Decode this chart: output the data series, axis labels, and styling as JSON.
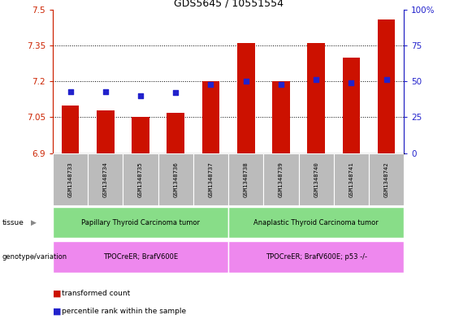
{
  "title": "GDS5645 / 10551554",
  "samples": [
    "GSM1348733",
    "GSM1348734",
    "GSM1348735",
    "GSM1348736",
    "GSM1348737",
    "GSM1348738",
    "GSM1348739",
    "GSM1348740",
    "GSM1348741",
    "GSM1348742"
  ],
  "transformed_count": [
    7.1,
    7.08,
    7.05,
    7.07,
    7.2,
    7.36,
    7.2,
    7.36,
    7.3,
    7.46
  ],
  "percentile_rank": [
    43,
    43,
    40,
    42,
    48,
    50,
    48,
    51,
    49,
    51
  ],
  "ylim_left": [
    6.9,
    7.5
  ],
  "ylim_right": [
    0,
    100
  ],
  "yticks_left": [
    6.9,
    7.05,
    7.2,
    7.35,
    7.5
  ],
  "yticks_right": [
    0,
    25,
    50,
    75,
    100
  ],
  "bar_color": "#cc1100",
  "dot_color": "#2222cc",
  "tissue_labels": [
    "Papillary Thyroid Carcinoma tumor",
    "Anaplastic Thyroid Carcinoma tumor"
  ],
  "tissue_color": "#88dd88",
  "genotype_labels": [
    "TPOCreER; BrafV600E",
    "TPOCreER; BrafV600E; p53 -/-"
  ],
  "genotype_color": "#ee88ee",
  "tissue_split": 5,
  "left_axis_color": "#cc2200",
  "right_axis_color": "#2222cc",
  "sample_box_color": "#bbbbbb",
  "legend_bar_label": "transformed count",
  "legend_dot_label": "percentile rank within the sample",
  "tissue_row_label": "tissue",
  "genotype_row_label": "genotype/variation"
}
